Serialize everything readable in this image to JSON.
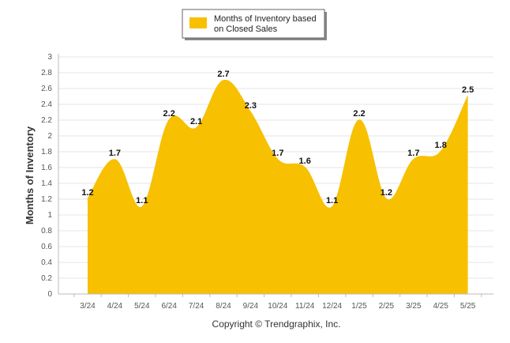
{
  "chart_data": {
    "type": "area",
    "categories": [
      "3/24",
      "4/24",
      "5/24",
      "6/24",
      "7/24",
      "8/24",
      "9/24",
      "10/24",
      "11/24",
      "12/24",
      "1/25",
      "2/25",
      "3/25",
      "4/25",
      "5/25"
    ],
    "series": [
      {
        "name": "Months of Inventory based on Closed Sales",
        "values": [
          1.2,
          1.7,
          1.1,
          2.2,
          2.1,
          2.7,
          2.3,
          1.7,
          1.6,
          1.1,
          2.2,
          1.2,
          1.7,
          1.8,
          2.5
        ],
        "value_labels": [
          "1.2",
          "1.7",
          "1.1",
          "2.2",
          "2.1",
          "2.7",
          "2.3",
          "1.7",
          "1.6",
          "1.1",
          "2.2",
          "1.2",
          "1.7",
          "1.8",
          "2.5"
        ],
        "color": "#F7C000"
      }
    ],
    "ylabel": "Months of Inventory",
    "xlabel": "",
    "ylim": [
      0,
      3
    ],
    "y_ticks": [
      0,
      0.2,
      0.4,
      0.6,
      0.8,
      1,
      1.2,
      1.4,
      1.6,
      1.8,
      2,
      2.2,
      2.4,
      2.6,
      2.8,
      3
    ],
    "y_tick_labels": [
      "0",
      "0.2",
      "0.4",
      "0.6",
      "0.8",
      "1",
      "1.2",
      "1.4",
      "1.6",
      "1.8",
      "2",
      "2.2",
      "2.4",
      "2.6",
      "2.8",
      "3"
    ],
    "grid": true,
    "legend": "top-center",
    "legend_lines": [
      "Months of Inventory based",
      "on Closed Sales"
    ],
    "credit": "Copyright © Trendgraphix, Inc."
  },
  "colors": {
    "series": "#F7C000",
    "grid": "#e4e4e4",
    "axis": "#bbbbbb"
  }
}
